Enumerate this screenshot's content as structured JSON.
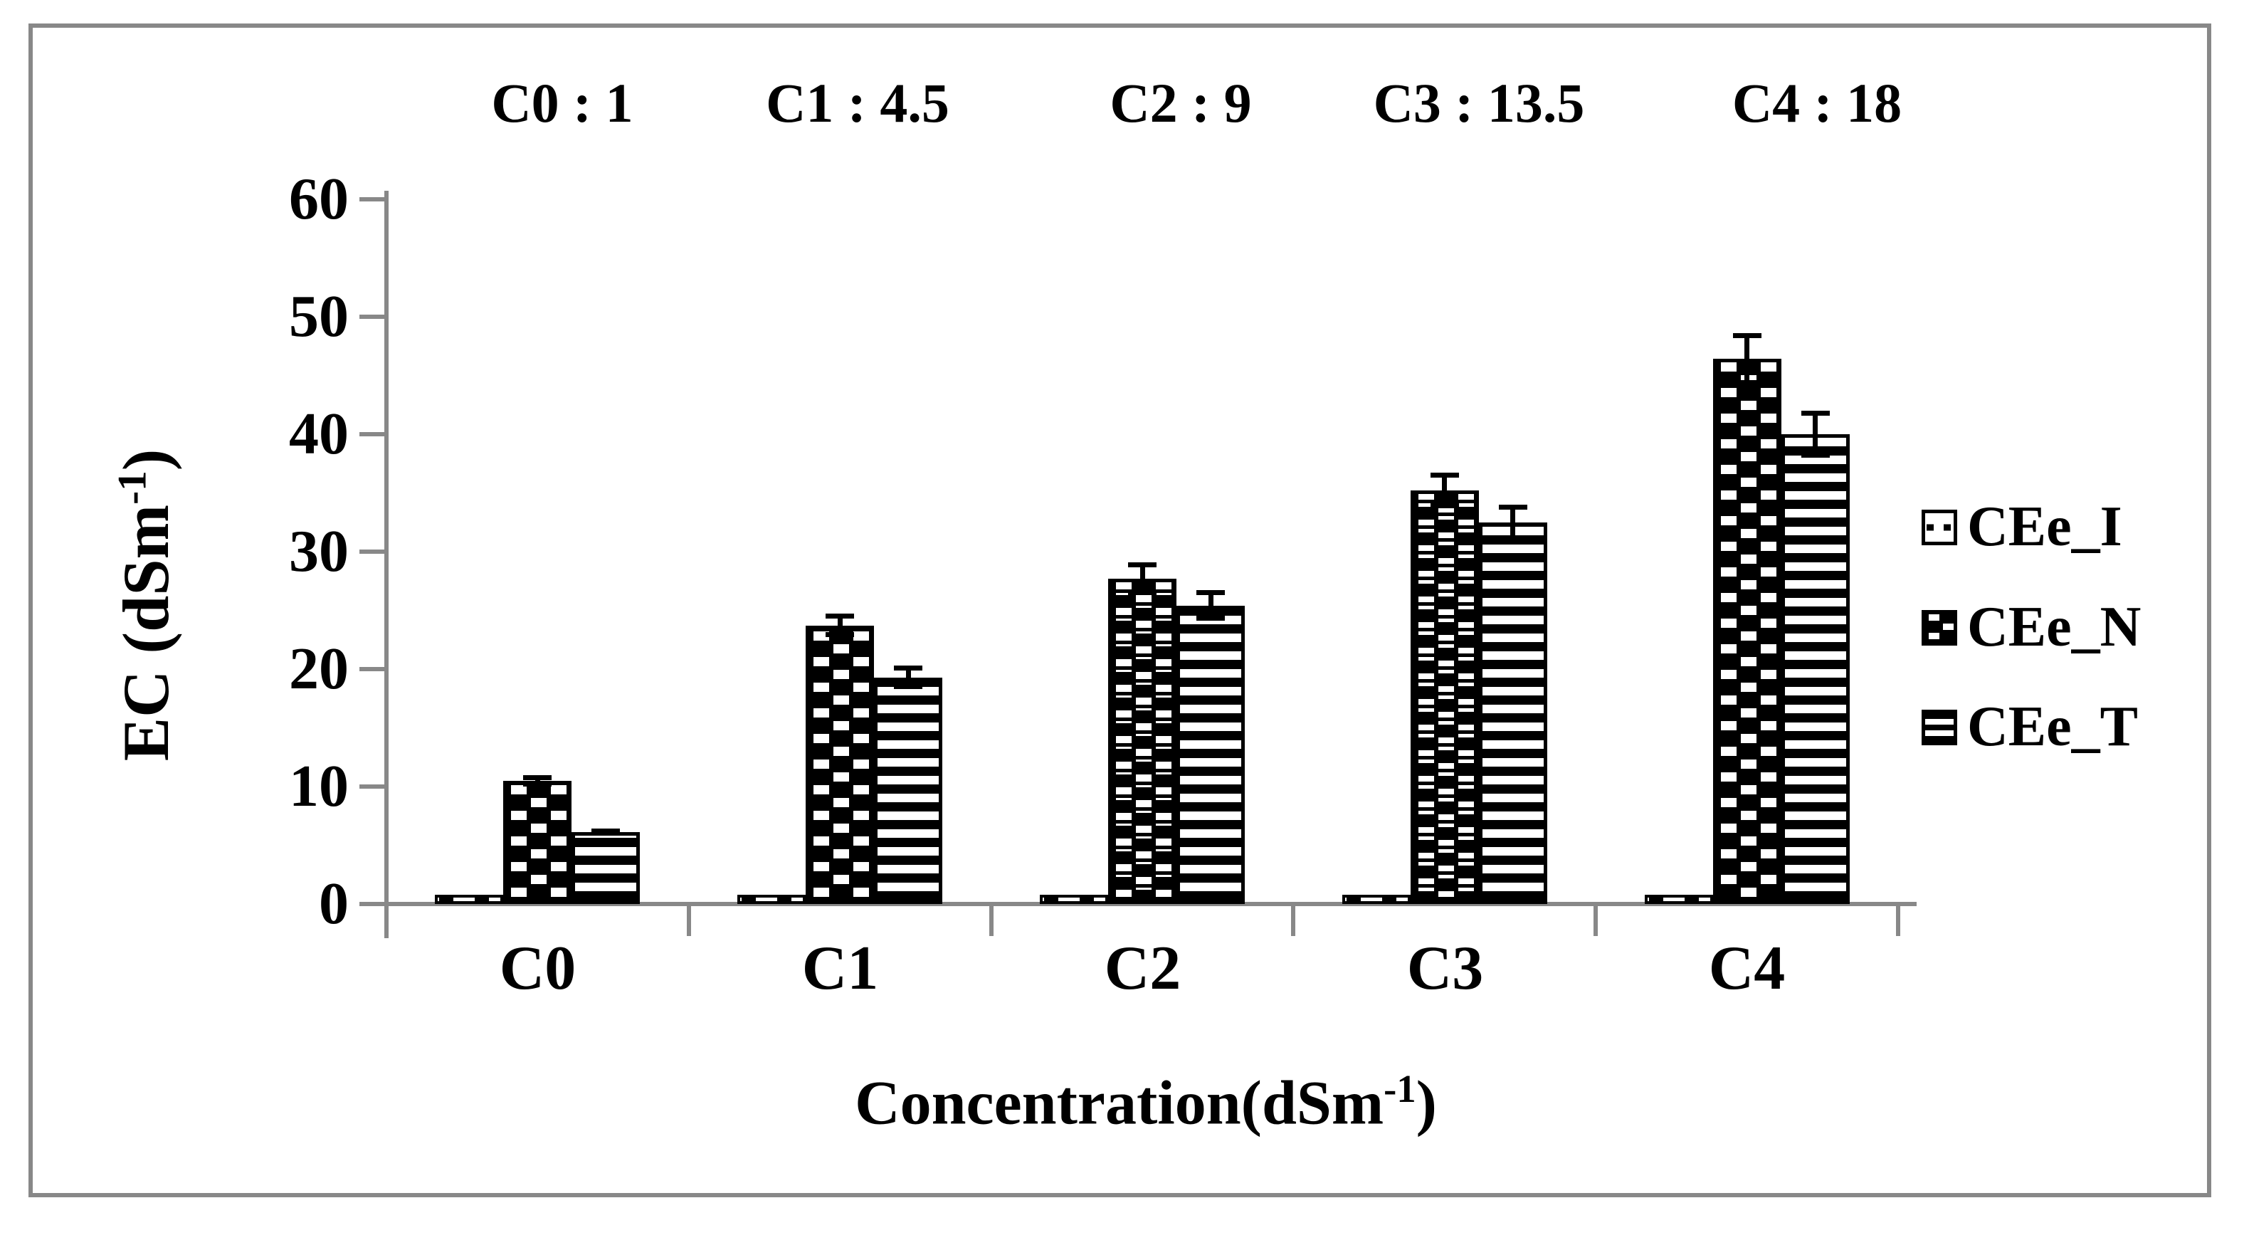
{
  "chart_data": {
    "type": "bar",
    "title": "",
    "annotations": [
      "C0 : 1",
      "C1 : 4.5",
      "C2 : 9",
      "C3 : 13.5",
      "C4 : 18"
    ],
    "categories": [
      "C0",
      "C1",
      "C2",
      "C3",
      "C4"
    ],
    "series": [
      {
        "name": "CEe_I",
        "pattern": "dotted",
        "values": [
          0.8,
          0.8,
          0.8,
          0.8,
          0.8
        ],
        "errors": [
          0,
          0,
          0,
          0,
          0
        ]
      },
      {
        "name": "CEe_N",
        "pattern": "checker",
        "values": [
          10.5,
          23.7,
          27.7,
          35.2,
          46.4
        ],
        "errors": [
          0.5,
          1.0,
          1.4,
          1.5,
          2.2
        ]
      },
      {
        "name": "CEe_T",
        "pattern": "hlines",
        "values": [
          6.1,
          19.3,
          25.4,
          32.5,
          40.0
        ],
        "errors": [
          0.3,
          1.0,
          1.3,
          1.5,
          2.0
        ]
      }
    ],
    "ylabel_main": "EC (dSm",
    "ylabel_sup": "-1",
    "ylabel_close": ")",
    "xlabel_main": "Concentration(dSm",
    "xlabel_sup": "-1",
    "xlabel_close": ")",
    "ylim": [
      0,
      60
    ],
    "yticks": [
      0,
      10,
      20,
      30,
      40,
      50,
      60
    ],
    "grid": false,
    "error_bars": true,
    "legend_position": "right",
    "colors": {
      "bar_outline": "#000000",
      "axis": "#888888",
      "frame": "#888888",
      "text": "#000000",
      "background": "#ffffff"
    }
  }
}
